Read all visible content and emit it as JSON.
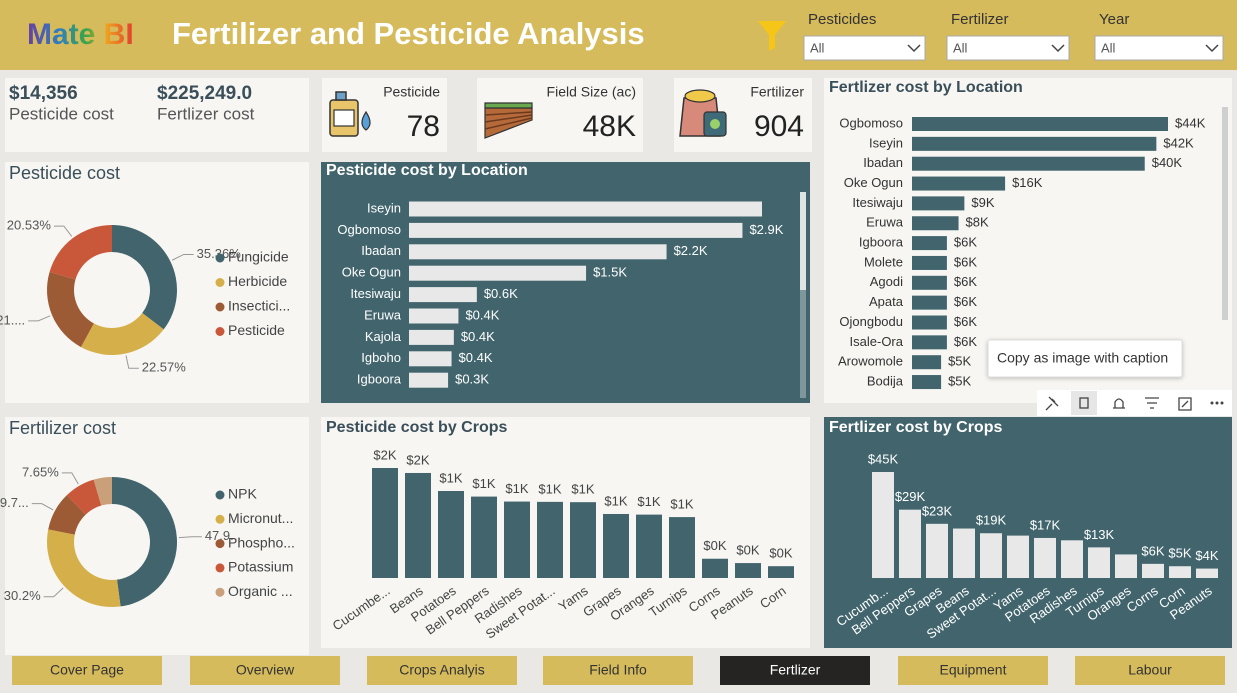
{
  "header": {
    "logo": "Mate BI",
    "title": "Fertilizer and Pesticide Analysis"
  },
  "filters": [
    {
      "label": "Pesticides",
      "value": "All"
    },
    {
      "label": "Fertilizer",
      "value": "All"
    },
    {
      "label": "Year",
      "value": "All"
    }
  ],
  "summary": [
    {
      "value": "$14,356",
      "label": "Pesticide cost"
    },
    {
      "value": "$225,249.0",
      "label": "Fertlizer cost"
    }
  ],
  "cards": [
    {
      "label": "Pesticide",
      "value": 78
    },
    {
      "label": "Field Size (ac)",
      "value": "48K"
    },
    {
      "label": "Fertilizer",
      "value": 904
    }
  ],
  "chart_data": [
    {
      "type": "donut",
      "title": "Pesticide cost",
      "categories": [
        "Fungicide",
        "Herbicide",
        "Insectici...",
        "Pesticide"
      ],
      "values": [
        35.36,
        22.57,
        21.54,
        20.53
      ],
      "value_labels": [
        "35.36%",
        "22.57%",
        "21....",
        "20.53%"
      ],
      "colors": [
        "#41646d",
        "#d5b04a",
        "#9c5a35",
        "#c9573a"
      ]
    },
    {
      "type": "hbar",
      "title": "Pesticide cost by Location",
      "categories": [
        "Iseyin",
        "Ogbomoso",
        "Ibadan",
        "Oke Ogun",
        "Itesiwaju",
        "Eruwa",
        "Kajola",
        "Igboho",
        "Igboora"
      ],
      "values": [
        3070,
        2900,
        2240,
        1540,
        590,
        430,
        390,
        370,
        340
      ],
      "value_labels": [
        null,
        "$2.9K",
        "$2.2K",
        "$1.5K",
        "$0.6K",
        "$0.4K",
        "$0.4K",
        "$0.4K",
        "$0.3K"
      ],
      "color": "#e8e8e8"
    },
    {
      "type": "hbar",
      "title": "Fertlizer cost by Location",
      "categories": [
        "Ogbomoso",
        "Iseyin",
        "Ibadan",
        "Oke Ogun",
        "Itesiwaju",
        "Eruwa",
        "Igboora",
        "Molete",
        "Agodi",
        "Apata",
        "Ojongbodu",
        "Isale-Ora",
        "Arowomole",
        "Bodija"
      ],
      "values": [
        44000,
        42000,
        40000,
        16000,
        9000,
        8000,
        6000,
        6000,
        6000,
        6000,
        6000,
        6000,
        5000,
        5000
      ],
      "value_labels": [
        "$44K",
        "$42K",
        "$40K",
        "$16K",
        "$9K",
        "$8K",
        "$6K",
        "$6K",
        "$6K",
        "$6K",
        "$6K",
        "$6K",
        "$5K",
        "$5K"
      ],
      "color": "#41646d"
    },
    {
      "type": "donut",
      "title": "Fertilizer cost",
      "categories": [
        "NPK",
        "Micronut...",
        "Phospho...",
        "Potassium",
        "Organic ..."
      ],
      "values": [
        47.9,
        30.2,
        9.7,
        7.65,
        4.55
      ],
      "value_labels": [
        "47.9...",
        "30.2%",
        "9.7...",
        "7.65%",
        null
      ],
      "colors": [
        "#41646d",
        "#d5b04a",
        "#9c5a35",
        "#c9573a",
        "#c9a07a"
      ]
    },
    {
      "type": "column",
      "title": "Pesticide cost by Crops",
      "categories": [
        "Cucumbe...",
        "Beans",
        "Potatoes",
        "Bell Peppers",
        "Radishes",
        "Sweet Potat...",
        "Yams",
        "Grapes",
        "Oranges",
        "Turnips",
        "Corns",
        "Peanuts",
        "Corn"
      ],
      "values": [
        1770,
        1690,
        1400,
        1310,
        1230,
        1225,
        1220,
        1030,
        1020,
        980,
        310,
        240,
        190
      ],
      "value_labels": [
        "$2K",
        "$2K",
        "$1K",
        "$1K",
        "$1K",
        "$1K",
        "$1K",
        "$1K",
        "$1K",
        "$1K",
        "$0K",
        "$0K",
        "$0K"
      ],
      "color": "#41646d"
    },
    {
      "type": "column",
      "title": "Fertlizer cost by Crops",
      "categories": [
        "Cucumb...",
        "Bell Peppers",
        "Grapes",
        "Beans",
        "Sweet Potat...",
        "Yams",
        "Potatoes",
        "Radishes",
        "Turnips",
        "Oranges",
        "Corns",
        "Corn",
        "Peanuts"
      ],
      "values": [
        45000,
        29000,
        23000,
        21000,
        19000,
        18000,
        17000,
        16000,
        13000,
        10000,
        6000,
        5000,
        4000
      ],
      "value_labels": [
        "$45K",
        "$29K",
        "$23K",
        null,
        "$19K",
        null,
        "$17K",
        null,
        "$13K",
        null,
        "$6K",
        "$5K",
        "$4K"
      ],
      "color": "#e8e8e8"
    }
  ],
  "tooltip": "Copy as image with caption",
  "nav": [
    "Cover Page",
    "Overview",
    "Crops Analyis",
    "Field Info",
    "Fertlizer",
    "Equipment",
    "Labour"
  ],
  "nav_active": 4
}
